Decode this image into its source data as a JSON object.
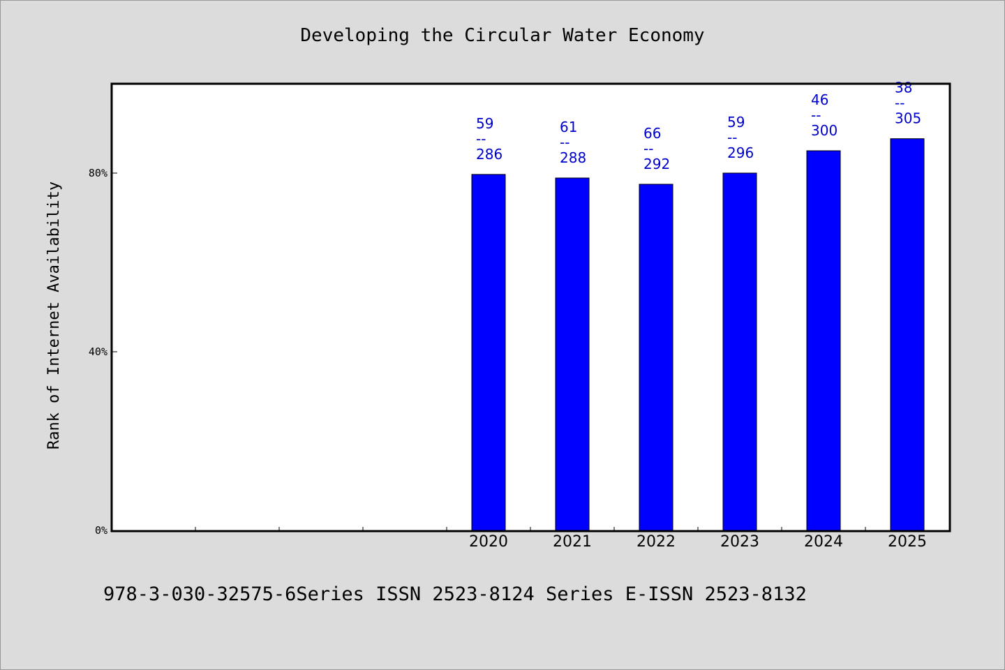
{
  "chart_data": {
    "type": "bar",
    "title": "Developing the Circular Water Economy",
    "ylabel": "Rank of Internet Availability",
    "xlabel": "",
    "ylim": [
      0,
      100
    ],
    "yticks": [
      "0%",
      "40%",
      "80%"
    ],
    "ytick_values": [
      0,
      40,
      80
    ],
    "slots": 10,
    "categories": [
      "2020",
      "2021",
      "2022",
      "2023",
      "2024",
      "2025"
    ],
    "category_slots": [
      5,
      6,
      7,
      8,
      9,
      10
    ],
    "values": [
      79.7,
      78.9,
      77.5,
      80.0,
      85.0,
      87.7
    ],
    "data_labels": [
      {
        "top": "59",
        "sep": "--",
        "bottom": "286"
      },
      {
        "top": "61",
        "sep": "--",
        "bottom": "288"
      },
      {
        "top": "66",
        "sep": "--",
        "bottom": "292"
      },
      {
        "top": "59",
        "sep": "--",
        "bottom": "296"
      },
      {
        "top": "46",
        "sep": "--",
        "bottom": "300"
      },
      {
        "top": "38",
        "sep": "--",
        "bottom": "305"
      }
    ],
    "bar_color": "#0000ff",
    "label_color": "#0000cc",
    "grid": false
  },
  "footer": "978-3-030-32575-6Series ISSN 2523-8124 Series E-ISSN 2523-8132"
}
